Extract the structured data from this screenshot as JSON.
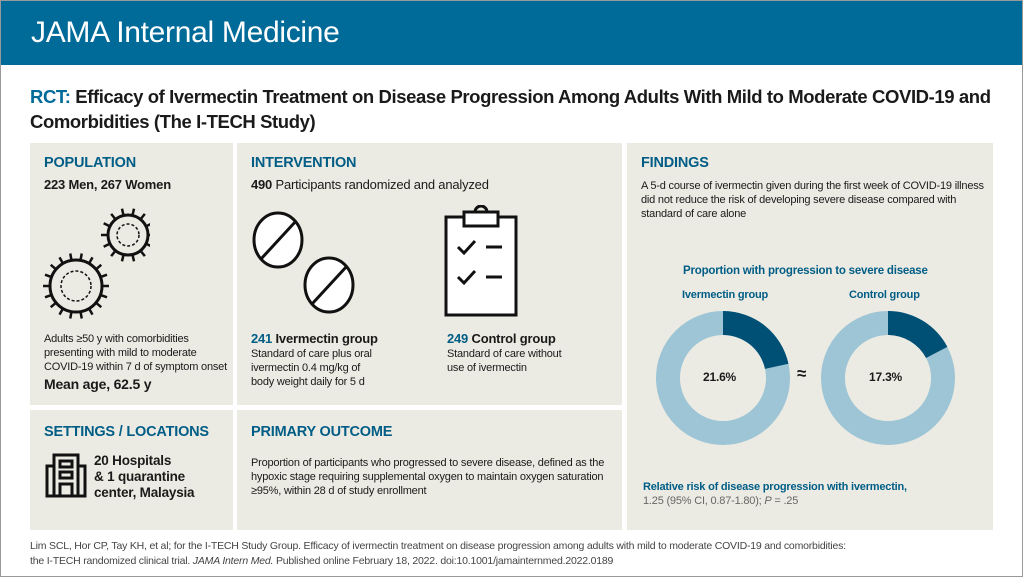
{
  "header": {
    "journal": "JAMA Internal Medicine"
  },
  "title": {
    "prefix": "RCT:",
    "text": "Efficacy of Ivermectin Treatment on Disease Progression Among Adults With Mild to Moderate COVID-19 and Comorbidities (The I-TECH Study)"
  },
  "population": {
    "heading": "POPULATION",
    "counts": "223 Men, 267 Women",
    "icon": "virus-icon",
    "description": "Adults ≥50 y with comorbidities presenting with mild to moderate COVID-19 within 7 d of symptom onset",
    "mean_age": "Mean age, 62.5 y"
  },
  "intervention": {
    "heading": "INTERVENTION",
    "total_number": "490",
    "total_text": "Participants randomized and analyzed",
    "groups": [
      {
        "icon": "pills-icon",
        "number": "241",
        "name": "Ivermectin group",
        "description": "Standard of care plus oral ivermectin 0.4 mg/kg of body weight daily for 5 d"
      },
      {
        "icon": "clipboard-icon",
        "number": "249",
        "name": "Control group",
        "description": "Standard of care without use of ivermectin"
      }
    ]
  },
  "settings": {
    "heading": "SETTINGS / LOCATIONS",
    "icon": "hospital-icon",
    "line1": "20 Hospitals",
    "line2": "& 1 quarantine",
    "line3": "center, Malaysia"
  },
  "primary_outcome": {
    "heading": "PRIMARY OUTCOME",
    "text": "Proportion of participants who progressed to severe disease, defined as the hypoxic stage requiring supplemental oxygen to maintain oxygen saturation ≥95%, within 28 d of study enrollment"
  },
  "findings": {
    "heading": "FINDINGS",
    "text": "A 5-d course of ivermectin given during the first week of COVID-19 illness did not reduce the risk of developing severe disease compared with standard of care alone",
    "approx_symbol": "≈",
    "rr_label": "Relative risk of disease progression with ivermectin,",
    "rr_value": "1.25 (95% CI, 0.87-1.80); ",
    "rr_p_label": "P",
    "rr_p_value": " = .25"
  },
  "chart_data": {
    "type": "pie",
    "title": "Proportion with progression to severe disease",
    "series": [
      {
        "name": "Ivermectin group",
        "value": 21.6,
        "label": "21.6%"
      },
      {
        "name": "Control group",
        "value": 17.3,
        "label": "17.3%"
      }
    ],
    "colors": {
      "progressed": "#004f74",
      "remaining": "#9dc5d6"
    }
  },
  "citation": {
    "line1": "Lim SCL, Hor CP, Tay KH, et al; for the I-TECH Study Group. Efficacy of ivermectin treatment on disease progression among adults with mild to moderate COVID-19 and comorbidities:",
    "line2_pre": "the I-TECH randomized clinical trial. ",
    "journal": "JAMA Intern Med.",
    "line2_post": " Published online February 18, 2022. doi:10.1001/jamainternmed.2022.0189"
  }
}
